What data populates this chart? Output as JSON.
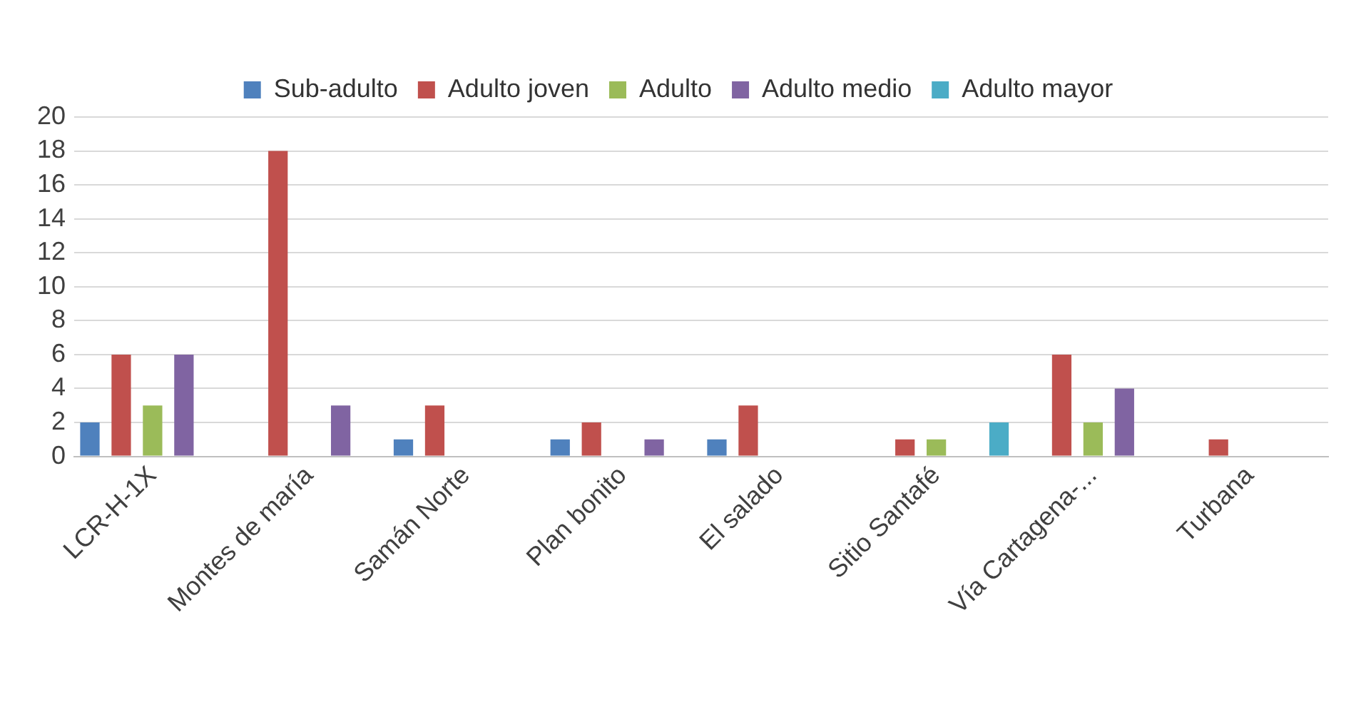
{
  "chart_data": {
    "type": "bar",
    "categories": [
      "LCR-H-1X",
      "Montes de maría",
      "Samán Norte",
      "Plan bonito",
      "El salado",
      "Sitio Santafé",
      "Vía Cartagena-...",
      "Turbana"
    ],
    "series": [
      {
        "name": "Sub-adulto",
        "color": "#4f81bd",
        "values": [
          2,
          0,
          1,
          1,
          1,
          0,
          0,
          0
        ]
      },
      {
        "name": "Adulto joven",
        "color": "#c0504d",
        "values": [
          6,
          18,
          3,
          2,
          3,
          1,
          6,
          1
        ]
      },
      {
        "name": "Adulto",
        "color": "#9bbb59",
        "values": [
          3,
          0,
          0,
          0,
          0,
          1,
          2,
          0
        ]
      },
      {
        "name": "Adulto medio",
        "color": "#8064a2",
        "values": [
          6,
          3,
          0,
          1,
          0,
          0,
          4,
          0
        ]
      },
      {
        "name": "Adulto mayor",
        "color": "#4bacc6",
        "values": [
          0,
          0,
          0,
          0,
          0,
          2,
          0,
          0
        ]
      }
    ],
    "ylim": [
      0,
      20
    ],
    "yticks": [
      0,
      2,
      4,
      6,
      8,
      10,
      12,
      14,
      16,
      18,
      20
    ],
    "grid": "y",
    "legend": "top"
  }
}
